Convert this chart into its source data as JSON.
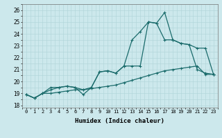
{
  "xlabel": "Humidex (Indice chaleur)",
  "bg_color": "#cce8ec",
  "line_color": "#1a6b6b",
  "grid_color": "#aed4d8",
  "xlim": [
    -0.5,
    23.5
  ],
  "ylim": [
    17.8,
    26.5
  ],
  "xticks": [
    0,
    1,
    2,
    3,
    4,
    5,
    6,
    7,
    8,
    9,
    10,
    11,
    12,
    13,
    14,
    15,
    16,
    17,
    18,
    19,
    20,
    21,
    22,
    23
  ],
  "yticks": [
    18,
    19,
    20,
    21,
    22,
    23,
    24,
    25,
    26
  ],
  "line1_x": [
    0,
    1,
    2,
    3,
    4,
    5,
    6,
    7,
    8,
    9,
    10,
    11,
    12,
    13,
    14,
    15,
    16,
    17,
    18,
    19,
    20,
    21,
    22,
    23
  ],
  "line1_y": [
    18.9,
    18.6,
    19.0,
    19.5,
    19.5,
    19.6,
    19.5,
    18.9,
    19.5,
    20.8,
    20.9,
    20.7,
    21.3,
    23.5,
    24.2,
    25.0,
    24.9,
    25.8,
    23.5,
    23.2,
    23.1,
    22.8,
    22.8,
    20.6
  ],
  "line2_x": [
    0,
    1,
    2,
    3,
    4,
    5,
    6,
    7,
    8,
    9,
    10,
    11,
    12,
    13,
    14,
    15,
    16,
    17,
    18,
    19,
    20,
    21,
    22,
    23
  ],
  "line2_y": [
    18.9,
    18.6,
    19.0,
    19.3,
    19.5,
    19.6,
    19.5,
    19.3,
    19.5,
    20.8,
    20.9,
    20.7,
    21.3,
    21.3,
    21.3,
    25.0,
    24.9,
    23.5,
    23.5,
    23.2,
    23.1,
    21.0,
    20.7,
    20.6
  ],
  "line3_x": [
    0,
    1,
    2,
    3,
    4,
    5,
    6,
    7,
    8,
    9,
    10,
    11,
    12,
    13,
    14,
    15,
    16,
    17,
    18,
    19,
    20,
    21,
    22,
    23
  ],
  "line3_y": [
    18.9,
    18.6,
    19.0,
    19.0,
    19.1,
    19.2,
    19.3,
    19.3,
    19.4,
    19.5,
    19.6,
    19.7,
    19.9,
    20.1,
    20.3,
    20.5,
    20.7,
    20.9,
    21.0,
    21.1,
    21.2,
    21.3,
    20.6,
    20.6
  ]
}
